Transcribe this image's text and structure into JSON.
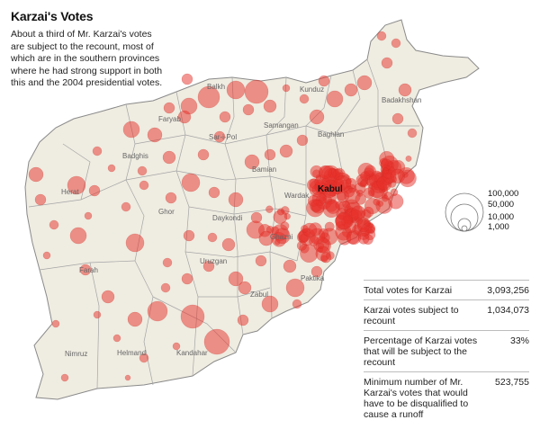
{
  "header": {
    "title": "Karzai's Votes",
    "subtitle": "About a third of Mr. Karzai's votes are subject to the recount, most of which are in the southern provinces where he had strong support in both this and the 2004 presidential votes."
  },
  "legend": {
    "items": [
      "100,000",
      "50,000",
      "10,000",
      "1,000"
    ]
  },
  "stats": [
    {
      "label": "Total votes for Karzai",
      "value": "3,093,256"
    },
    {
      "label": "Karzai votes subject to recount",
      "value": "1,034,073"
    },
    {
      "label": "Percentage of Karzai votes that will be subject to the recount",
      "value": "33%"
    },
    {
      "label": "Minimum number of Mr. Karzai's votes that would have to be disqualified to cause a runoff",
      "value": "523,755"
    }
  ],
  "map": {
    "labels": [
      "Kabul",
      "Herat",
      "Farah",
      "Nimruz",
      "Helmand",
      "Kandahar",
      "Uruzgan",
      "Zabul",
      "Ghazni",
      "Paktika",
      "Bamian",
      "Wardak",
      "Ghor",
      "Daykondi",
      "Badghis",
      "Faryab",
      "Sar-i-Pol",
      "Samangan",
      "Baghlan",
      "Kunduz",
      "Balkh",
      "Badakhshan"
    ],
    "land_color": "#efece1",
    "border_color": "#9a9a9a",
    "bubble_color": "#e8302a"
  }
}
